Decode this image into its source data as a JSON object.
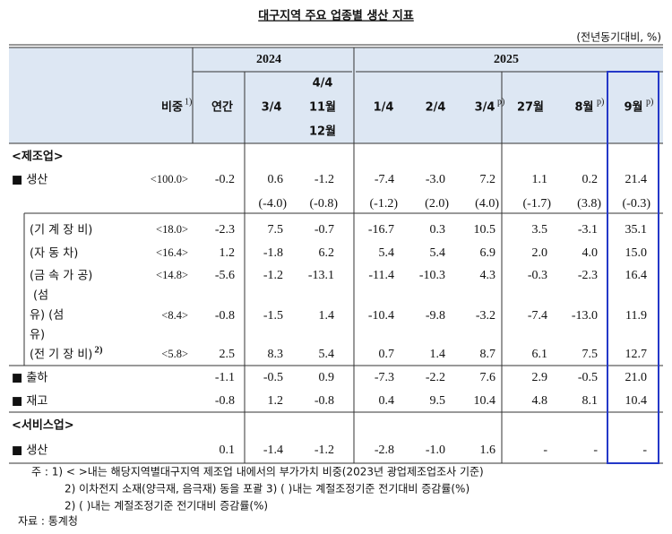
{
  "header": {
    "title": "대구지역 주요 업종별 생산 지표",
    "unit": "(전년동기대비, %)"
  },
  "table": {
    "years": [
      "2024",
      "2025"
    ],
    "columns": [
      {
        "lines": [
          "비중"
        ],
        "sup": "1)"
      },
      {
        "lines": [
          "연간"
        ]
      },
      {
        "lines": [
          "3/4"
        ]
      },
      {
        "lines": [
          "4/4",
          "11월",
          "12월"
        ]
      },
      {
        "lines": [
          "1/4"
        ]
      },
      {
        "lines": [
          "2/4"
        ]
      },
      {
        "lines": [
          "3/4"
        ],
        "sup": "p)"
      },
      {
        "lines": [
          "27월"
        ]
      },
      {
        "lines": [
          "8월"
        ],
        "sup": "p)"
      },
      {
        "lines": [
          "9월"
        ],
        "sup": "p)"
      }
    ],
    "sections": [
      {
        "label": "<제조업>",
        "rows": [
          {
            "label": "■ 생산",
            "share": "<100.0>",
            "values": [
              "-0.2",
              "0.6",
              "-1.2",
              "-7.4",
              "-3.0",
              "7.2",
              "1.1",
              "0.2",
              "21.4"
            ],
            "sub": [
              null,
              "(-4.0)",
              "(-0.8)",
              "(-1.2)",
              "(2.0)",
              "(4.0)",
              "(-1.7)",
              "(3.8)",
              "(-0.3)"
            ]
          },
          {
            "label": "(기 계 장 비)",
            "share": "<18.0>",
            "values": [
              "-2.3",
              "7.5",
              "-0.7",
              "-16.7",
              "0.3",
              "10.5",
              "3.5",
              "-3.1",
              "35.1"
            ]
          },
          {
            "label": "(자  동  차)",
            "share": "<16.4>",
            "values": [
              "1.2",
              "-1.8",
              "6.2",
              "5.4",
              "5.4",
              "6.9",
              "2.0",
              "4.0",
              "15.0"
            ]
          },
          {
            "label": "(금 속 가 공)",
            "share": "<14.8>",
            "values": [
              "-5.6",
              "-1.2",
              "-13.1",
              "-11.4",
              "-10.3",
              "4.3",
              "-0.3",
              "-2.3",
              "16.4"
            ]
          },
          {
            "label": [
              "(섬",
              "유) (섬",
              "유)"
            ],
            "share": "<8.4>",
            "values": [
              "-0.8",
              "-1.5",
              "1.4",
              "-10.4",
              "-9.8",
              "-3.2",
              "-7.4",
              "-13.0",
              "11.9"
            ]
          },
          {
            "label": "(전 기 장 비)",
            "sup": "2)",
            "share": "<5.8>",
            "values": [
              "2.5",
              "8.3",
              "5.4",
              "0.7",
              "1.4",
              "8.7",
              "6.1",
              "7.5",
              "12.7"
            ]
          },
          {
            "label": "■ 출하",
            "values": [
              "-1.1",
              "-0.5",
              "0.9",
              "-7.3",
              "-2.2",
              "7.6",
              "2.9",
              "-0.5",
              "21.0"
            ]
          },
          {
            "label": "■ 재고",
            "values": [
              "-0.8",
              "1.2",
              "-0.8",
              "0.4",
              "9.5",
              "10.4",
              "4.8",
              "8.1",
              "10.4"
            ]
          }
        ]
      },
      {
        "label": "<서비스업>",
        "rows": [
          {
            "label": "■ 생산",
            "values": [
              "0.1",
              "-1.4",
              "-1.2",
              "-2.8",
              "-1.0",
              "1.6",
              "-",
              "-",
              "-"
            ]
          }
        ]
      }
    ]
  },
  "notes": [
    "주 : 1) < >내는 해당지역별대구지역 제조업 내에서의 부가가치 비중(2023년 광업제조업조사 기준)",
    "2) 이차전지 소재(양극재, 음극재) 동을 포괄 3) (   )내는 계절조정기준 전기대비 증감률(%)",
    "2) (   )내는 계절조정기준 전기대비 증감률(%)",
    "자료 : 통계청"
  ]
}
